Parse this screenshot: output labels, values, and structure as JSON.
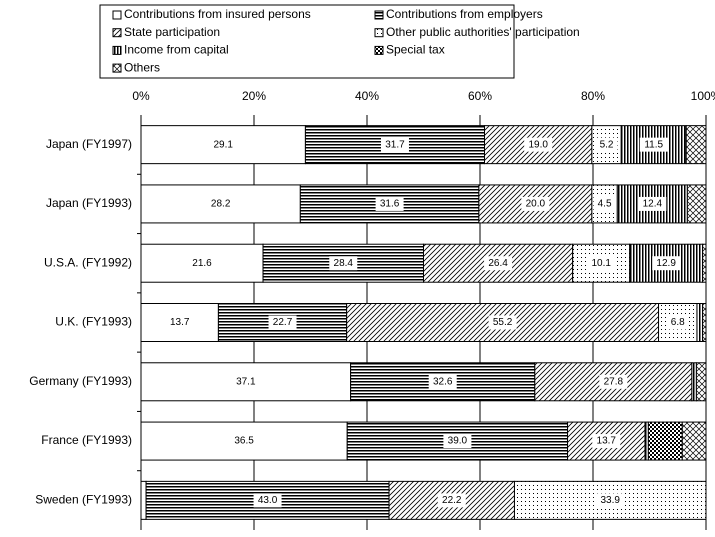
{
  "chart_data": {
    "type": "stacked-barh",
    "categories": [
      "Japan (FY1997)",
      "Japan (FY1993)",
      "U.S.A. (FY1992)",
      "U.K. (FY1993)",
      "Germany (FY1993)",
      "France (FY1993)",
      "Sweden (FY1993)"
    ],
    "series": [
      {
        "name": "Contributions from insured persons",
        "color": "#000000",
        "pattern": "none",
        "values": [
          29.1,
          28.2,
          21.6,
          13.7,
          37.1,
          36.5,
          0.9
        ],
        "value_labels": [
          "29.1",
          "28.2",
          "21.6",
          "13.7",
          "37.1",
          "36.5",
          null
        ]
      },
      {
        "name": "Contributions from employers",
        "color": "#000000",
        "pattern": "hlines",
        "values": [
          31.7,
          31.6,
          28.4,
          22.7,
          32.6,
          39.0,
          43.0
        ],
        "value_labels": [
          "31.7",
          "31.6",
          "28.4",
          "22.7",
          "32.6",
          "39.0",
          "43.0"
        ]
      },
      {
        "name": "State participation",
        "color": "#000000",
        "pattern": "diag",
        "values": [
          19.0,
          20.0,
          26.4,
          55.2,
          27.8,
          13.7,
          22.2
        ],
        "value_labels": [
          "19.0",
          "20.0",
          "26.4",
          "55.2",
          "27.8",
          "13.7",
          "22.2"
        ]
      },
      {
        "name": "Other public authorities' participation",
        "color": "#000000",
        "pattern": "dots",
        "values": [
          5.2,
          4.5,
          10.1,
          6.8,
          0,
          0,
          33.9
        ],
        "value_labels": [
          "5.2",
          "4.5",
          "10.1",
          "6.8",
          null,
          null,
          "33.9"
        ]
      },
      {
        "name": "Income from capital",
        "color": "#000000",
        "pattern": "vlines",
        "values": [
          11.5,
          12.4,
          12.9,
          1.0,
          0.8,
          0.6,
          0
        ],
        "value_labels": [
          "11.5",
          "12.4",
          "12.9",
          null,
          null,
          null,
          null
        ]
      },
      {
        "name": "Special tax",
        "color": "#000000",
        "pattern": "checker",
        "values": [
          0,
          0,
          0,
          0,
          0,
          6.0,
          0
        ],
        "value_labels": [
          null,
          null,
          null,
          null,
          null,
          null,
          null
        ]
      },
      {
        "name": "Others",
        "color": "#000000",
        "pattern": "cross",
        "values": [
          3.5,
          3.3,
          0.6,
          0.6,
          1.7,
          4.2,
          0
        ],
        "value_labels": [
          null,
          null,
          null,
          null,
          null,
          null,
          null
        ]
      }
    ],
    "xlim": [
      0,
      100
    ],
    "xticks": [
      {
        "value": 0,
        "label": "0%"
      },
      {
        "value": 20,
        "label": "20%"
      },
      {
        "value": 40,
        "label": "40%"
      },
      {
        "value": 60,
        "label": "60%"
      },
      {
        "value": 80,
        "label": "80%"
      },
      {
        "value": 100,
        "label": "100%"
      }
    ],
    "grid": true
  }
}
